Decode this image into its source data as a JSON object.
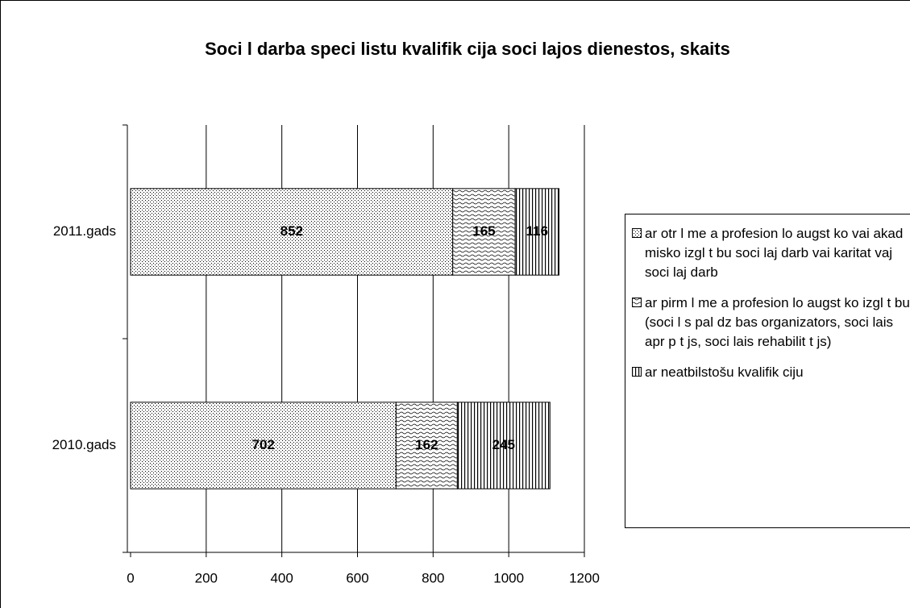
{
  "chart_data": {
    "type": "stacked-barh",
    "title": "Soci l darba speci listu kvalifik cija soci lajos dienestos, skaits",
    "categories": [
      "2010.gads",
      "2011.gads"
    ],
    "series": [
      {
        "name": "ar otr l me a profesion lo augst ko vai akad misko izgl t bu soci laj darb vai karitat vaj soci laj darb",
        "color": "#000000",
        "pattern": "dots",
        "values": [
          702,
          852
        ]
      },
      {
        "name": "ar pirm l me a profesion lo augst ko izgl t bu (soci l s pal dz bas organizators, soci lais apr p t js, soci lais rehabilit t js)",
        "color": "#000000",
        "pattern": "waves",
        "values": [
          162,
          165
        ]
      },
      {
        "name": "ar neatbilstošu kvalifik ciju",
        "color": "#000000",
        "pattern": "vlines",
        "values": [
          245,
          116
        ]
      }
    ],
    "xlim": [
      0,
      1200
    ],
    "xticks": [
      0,
      200,
      400,
      600,
      800,
      1000,
      1200
    ],
    "grid": true,
    "legend": "right"
  }
}
